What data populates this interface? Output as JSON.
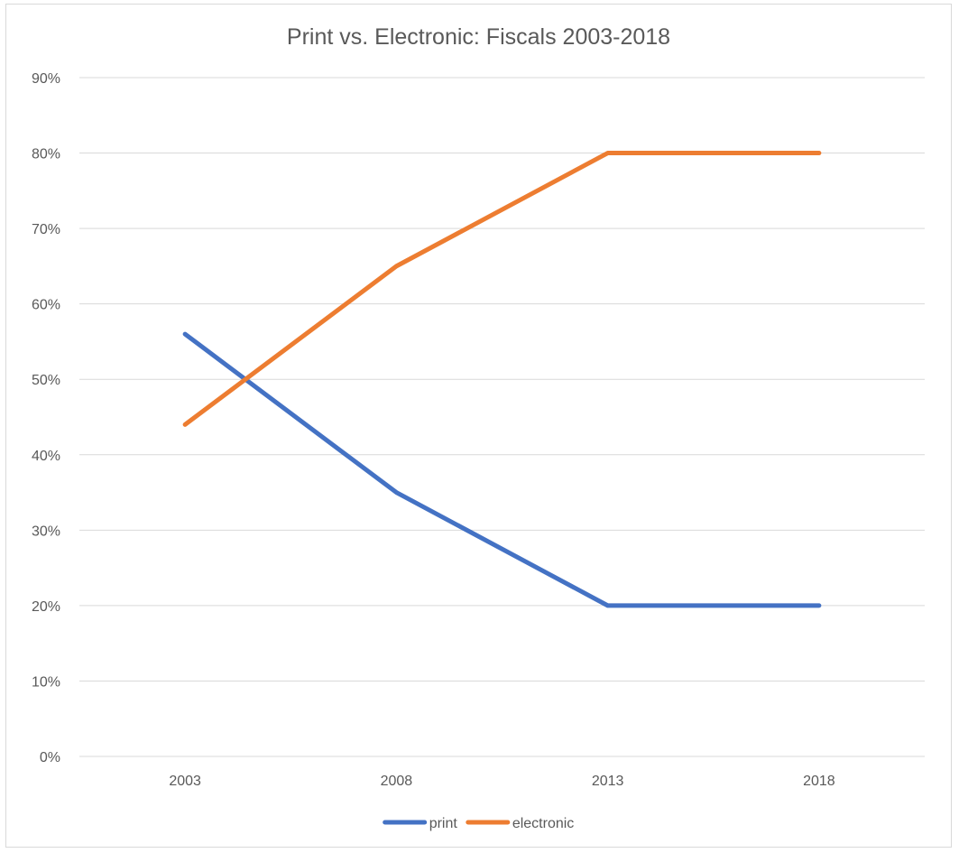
{
  "chart_data": {
    "type": "line",
    "title": "Print vs. Electronic: Fiscals 2003-2018",
    "categories": [
      "2003",
      "2008",
      "2013",
      "2018"
    ],
    "series": [
      {
        "name": "print",
        "color": "#4472c4",
        "values": [
          56,
          35,
          20,
          20
        ]
      },
      {
        "name": "electronic",
        "color": "#ed7d31",
        "values": [
          44,
          65,
          80,
          80
        ]
      }
    ],
    "ylim": [
      0,
      90
    ],
    "yticks": [
      "0%",
      "10%",
      "20%",
      "30%",
      "40%",
      "50%",
      "60%",
      "70%",
      "80%",
      "90%"
    ],
    "grid": true,
    "legend": "bottom"
  }
}
